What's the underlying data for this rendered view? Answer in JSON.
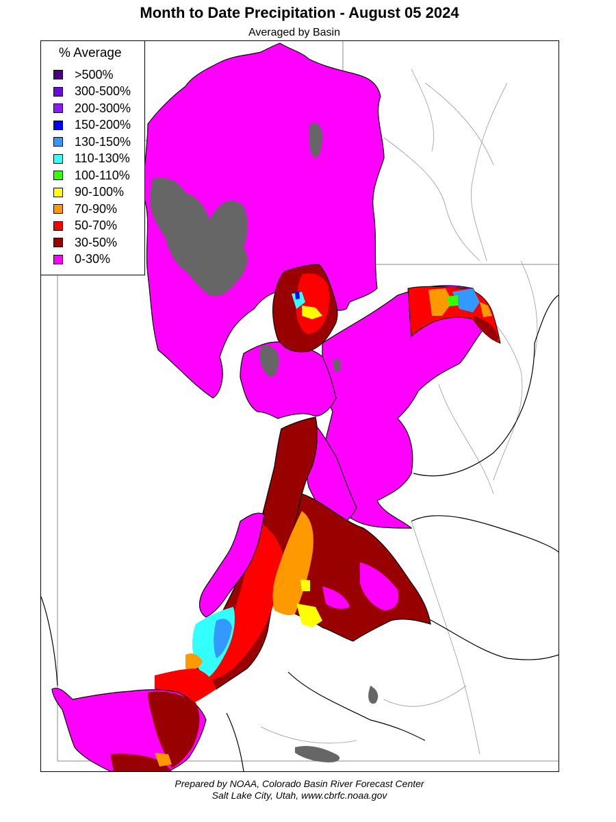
{
  "title": "Month to Date Precipitation - August 05 2024",
  "subtitle": "Averaged by Basin",
  "legend": {
    "title": "% Average",
    "items": [
      {
        "label": ">500%",
        "color": "#4b0082"
      },
      {
        "label": "300-500%",
        "color": "#6a0adc"
      },
      {
        "label": "200-300%",
        "color": "#8c1aff"
      },
      {
        "label": "150-200%",
        "color": "#0000ff"
      },
      {
        "label": "130-150%",
        "color": "#3399ff"
      },
      {
        "label": "110-130%",
        "color": "#33ffff"
      },
      {
        "label": "100-110%",
        "color": "#33ff00"
      },
      {
        "label": "90-100%",
        "color": "#ffff00"
      },
      {
        "label": "70-90%",
        "color": "#ff9900"
      },
      {
        "label": "50-70%",
        "color": "#ff0000"
      },
      {
        "label": "30-50%",
        "color": "#990000"
      },
      {
        "label": "0-30%",
        "color": "#ff00ff"
      }
    ]
  },
  "map_colors": {
    "no_data": "#666666",
    "water": "#666666",
    "basin_border": "#000000",
    "river": "#9a9a9a"
  },
  "footer": {
    "line1": "Prepared by NOAA, Colorado Basin River Forecast Center",
    "line2": "Salt Lake City, Utah, www.cbrfc.noaa.gov"
  }
}
